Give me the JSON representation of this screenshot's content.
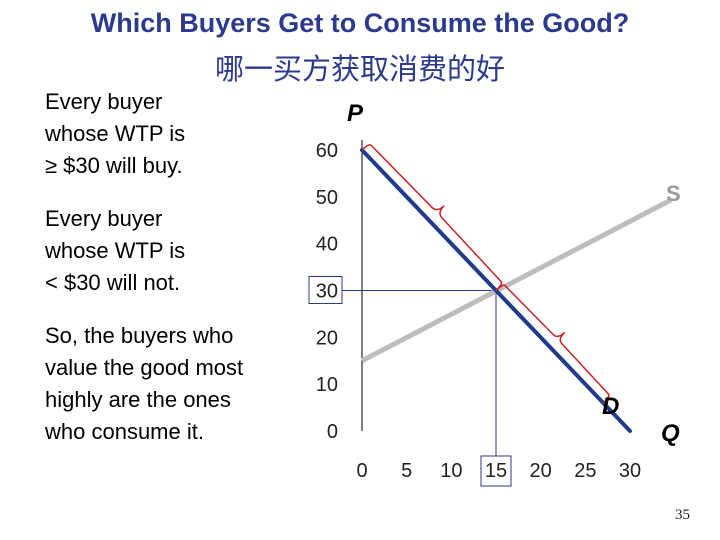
{
  "slide": {
    "title": "Which Buyers Get to Consume the Good?",
    "subtitle_zh": "哪一买方获取消费的好",
    "paragraphs": [
      [
        "Every buyer",
        "whose WTP is",
        "≥ $30 will buy."
      ],
      [
        "Every buyer",
        "whose WTP is",
        "< $30 will not."
      ],
      [
        "So, the buyers who",
        "value the good most",
        "highly are the ones",
        "who consume it."
      ]
    ],
    "page_number": "35"
  },
  "colors": {
    "title": "#2b3a8f",
    "demand": "#1f3b8c",
    "supply": "#bdbdbd",
    "brace": "#cc2222",
    "guide": "#2b3a8f"
  },
  "chart_data": {
    "type": "line",
    "title": "",
    "xlabel": "Q",
    "ylabel": "P",
    "xlim": [
      0,
      30
    ],
    "ylim": [
      0,
      60
    ],
    "x_ticks": [
      "0",
      "5",
      "10",
      "15",
      "20",
      "25",
      "30"
    ],
    "y_ticks": [
      "0",
      "10",
      "20",
      "30",
      "40",
      "50",
      "60"
    ],
    "highlighted_ticks": {
      "x": "15",
      "y": "30"
    },
    "series": [
      {
        "name": "D",
        "label": "D",
        "points": [
          [
            0,
            60
          ],
          [
            30,
            0
          ]
        ]
      },
      {
        "name": "S",
        "label": "S",
        "points": [
          [
            0,
            15
          ],
          [
            35,
            50
          ]
        ]
      }
    ],
    "equilibrium": {
      "q": 15,
      "p": 30
    },
    "braces": [
      {
        "from": [
          0,
          60
        ],
        "to": [
          15,
          30
        ]
      },
      {
        "from": [
          15,
          30
        ],
        "to": [
          27,
          6
        ]
      }
    ]
  }
}
